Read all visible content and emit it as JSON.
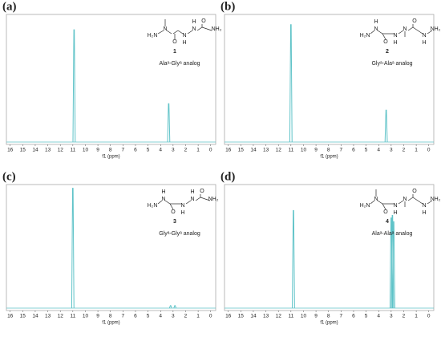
{
  "chart_data": [
    {
      "type": "spectrum",
      "panel_label": "(a)",
      "compound": "1",
      "caption": "Alaᵃ-Glyᵃ analog",
      "structure_atoms": [
        "H₂N",
        "N",
        "O",
        "N",
        "H",
        "N",
        "H",
        "O",
        "NH₂"
      ],
      "x": [
        10.9,
        3.35
      ],
      "values": [
        0.88,
        0.3
      ],
      "color": "#5fc3c8",
      "xlim": [
        16.3,
        -0.4
      ],
      "ylim": [
        0,
        1
      ],
      "xticks": [
        16,
        15,
        14,
        13,
        12,
        11,
        10,
        9,
        8,
        7,
        6,
        5,
        4,
        3,
        2,
        1,
        0
      ],
      "xlabel": "f1 (ppm)"
    },
    {
      "type": "spectrum",
      "panel_label": "(b)",
      "compound": "2",
      "caption": "Glyᵃ-Alaᵃ analog",
      "structure_atoms": [
        "H₂N",
        "N",
        "H",
        "O",
        "N",
        "H",
        "N",
        "O",
        "N",
        "H",
        "NH₂"
      ],
      "x": [
        11.0,
        3.4
      ],
      "values": [
        0.92,
        0.25
      ],
      "color": "#5fc3c8",
      "xlim": [
        16.3,
        -0.4
      ],
      "ylim": [
        0,
        1
      ],
      "xticks": [
        16,
        15,
        14,
        13,
        12,
        11,
        10,
        9,
        8,
        7,
        6,
        5,
        4,
        3,
        2,
        1,
        0
      ],
      "xlabel": "f1 (ppm)"
    },
    {
      "type": "spectrum",
      "panel_label": "(c)",
      "compound": "3",
      "caption": "Glyᵃ-Glyᵃ analog",
      "structure_atoms": [
        "H₂N",
        "N",
        "H",
        "O",
        "N",
        "H",
        "N",
        "H",
        "O",
        "NH₂"
      ],
      "x": [
        11.0,
        3.2,
        2.85
      ],
      "values": [
        0.97,
        0.02,
        0.02
      ],
      "color": "#5fc3c8",
      "xlim": [
        16.3,
        -0.4
      ],
      "ylim": [
        0,
        1
      ],
      "xticks": [
        16,
        15,
        14,
        13,
        12,
        11,
        10,
        9,
        8,
        7,
        6,
        5,
        4,
        3,
        2,
        1,
        0
      ],
      "xlabel": "f1 (ppm)"
    },
    {
      "type": "spectrum",
      "panel_label": "(d)",
      "compound": "4",
      "caption": "Alaᵃ-Alaᵃ analog",
      "structure_atoms": [
        "H₂N",
        "N",
        "O",
        "N",
        "H",
        "N",
        "O",
        "N",
        "H",
        "NH₂"
      ],
      "x": [
        10.8,
        3.0,
        2.9,
        2.8
      ],
      "values": [
        0.79,
        0.73,
        0.75,
        0.7
      ],
      "color": "#5fc3c8",
      "xlim": [
        16.3,
        -0.4
      ],
      "ylim": [
        0,
        1
      ],
      "xticks": [
        16,
        15,
        14,
        13,
        12,
        11,
        10,
        9,
        8,
        7,
        6,
        5,
        4,
        3,
        2,
        1,
        0
      ],
      "xlabel": "f1 (ppm)"
    }
  ]
}
